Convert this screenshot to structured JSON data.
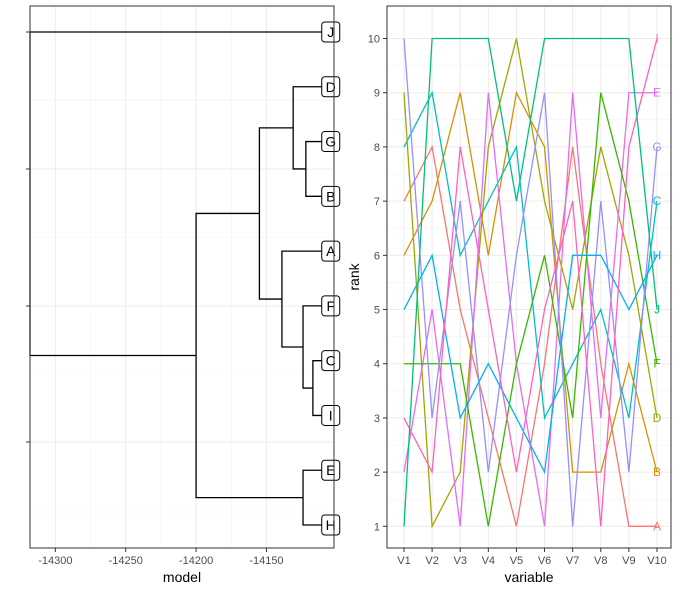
{
  "chart_data": [
    {
      "type": "dendrogram",
      "xlabel": "model",
      "ylabel": "",
      "xlim": [
        -14318,
        -14102
      ],
      "x_ticks": [
        -14300,
        -14250,
        -14200,
        -14150
      ],
      "x_tick_labels": [
        "-14300",
        "-14250",
        "-14200",
        "-14150"
      ],
      "grid": true,
      "leaf_x": -14110,
      "leaves": [
        "J",
        "D",
        "G",
        "B",
        "A",
        "F",
        "C",
        "I",
        "E",
        "H"
      ],
      "merges": [
        {
          "a": "C",
          "b": "I",
          "height": -14117
        },
        {
          "a": "G",
          "b": "B",
          "height": -14122
        },
        {
          "a": "F",
          "b": "C+I",
          "height": -14124
        },
        {
          "a": "E",
          "b": "H",
          "height": -14124
        },
        {
          "a": "D",
          "b": "G+B",
          "height": -14131
        },
        {
          "a": "A",
          "b": "F+C+I",
          "height": -14139
        },
        {
          "a": "D+G+B",
          "b": "A+F+C+I",
          "height": -14155
        },
        {
          "a": "D+G+B+A+F+C+I",
          "b": "E+H",
          "height": -14200
        },
        {
          "a": "J",
          "b": "D+G+B+A+F+C+I+E+H",
          "height": -14318
        }
      ]
    },
    {
      "type": "line",
      "xlabel": "variable",
      "ylabel": "rank",
      "categories": [
        "V1",
        "V2",
        "V3",
        "V4",
        "V5",
        "V6",
        "V7",
        "V8",
        "V9",
        "V10"
      ],
      "y_ticks": [
        1,
        2,
        3,
        4,
        5,
        6,
        7,
        8,
        9,
        10
      ],
      "ylim": [
        0.6,
        10.6
      ],
      "grid": true,
      "series": [
        {
          "name": "A",
          "color": "#F8766D",
          "values": [
            7,
            8,
            5,
            3,
            1,
            4,
            8,
            4,
            1,
            1
          ]
        },
        {
          "name": "B",
          "color": "#D89000",
          "values": [
            6,
            7,
            9,
            6,
            9,
            8,
            2,
            2,
            4,
            2
          ]
        },
        {
          "name": "C",
          "color": "#00BFC4",
          "values": [
            8,
            9,
            6,
            7,
            8,
            3,
            4,
            5,
            3,
            7
          ]
        },
        {
          "name": "D",
          "color": "#A3A500",
          "values": [
            9,
            1,
            2,
            8,
            10,
            7,
            5,
            8,
            6,
            3
          ]
        },
        {
          "name": "E",
          "color": "#E76BF3",
          "values": [
            2,
            5,
            1,
            9,
            4,
            1,
            9,
            3,
            9,
            9
          ]
        },
        {
          "name": "F",
          "color": "#39B600",
          "values": [
            4,
            4,
            4,
            1,
            4,
            6,
            3,
            9,
            7,
            4
          ]
        },
        {
          "name": "G",
          "color": "#9590FF",
          "values": [
            10,
            3,
            7,
            2,
            6,
            9,
            1,
            7,
            2,
            8
          ]
        },
        {
          "name": "H",
          "color": "#00B0F6",
          "values": [
            5,
            6,
            3,
            4,
            3,
            2,
            6,
            6,
            5,
            6
          ]
        },
        {
          "name": "I",
          "color": "#FF62BC",
          "values": [
            3,
            2,
            8,
            5,
            2,
            5,
            7,
            1,
            8,
            10
          ]
        },
        {
          "name": "J",
          "color": "#00BF7D",
          "values": [
            1,
            10,
            10,
            10,
            7,
            10,
            10,
            10,
            10,
            5
          ]
        }
      ]
    }
  ]
}
